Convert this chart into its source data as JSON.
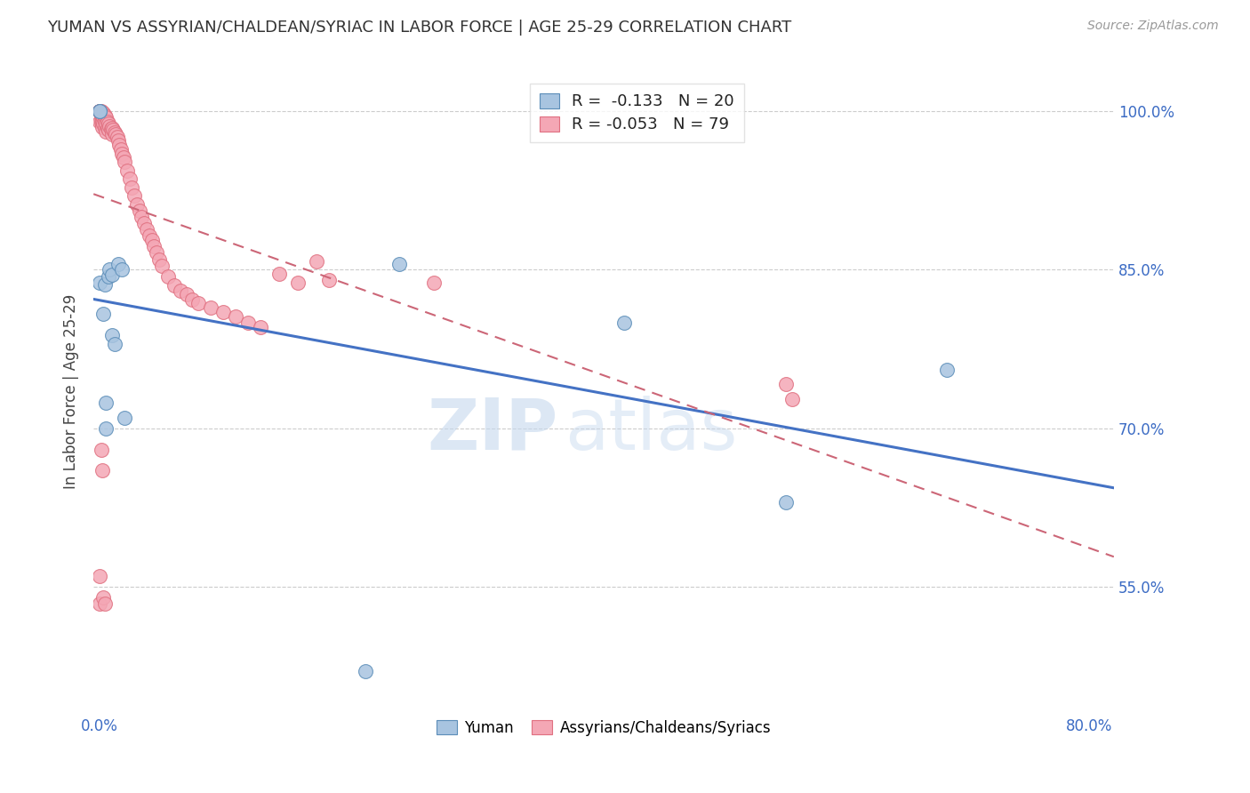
{
  "title": "YUMAN VS ASSYRIAN/CHALDEAN/SYRIAC IN LABOR FORCE | AGE 25-29 CORRELATION CHART",
  "source": "Source: ZipAtlas.com",
  "ylabel": "In Labor Force | Age 25-29",
  "ytick_labels": [
    "55.0%",
    "70.0%",
    "85.0%",
    "100.0%"
  ],
  "ytick_values": [
    0.55,
    0.7,
    0.85,
    1.0
  ],
  "xlim": [
    -0.005,
    0.82
  ],
  "ylim": [
    0.43,
    1.04
  ],
  "legend_blue_R": "-0.133",
  "legend_blue_N": "20",
  "legend_pink_R": "-0.053",
  "legend_pink_N": "79",
  "blue_color": "#A8C4E0",
  "pink_color": "#F4A7B5",
  "blue_edge_color": "#5B8DB8",
  "pink_edge_color": "#E07080",
  "blue_line_color": "#4472C4",
  "pink_line_color": "#D9708080",
  "watermark_zip_color": "#C5D8EE",
  "watermark_atlas_color": "#C5D8EE",
  "legend_label_blue": "Yuman",
  "legend_label_pink": "Assyrians/Chaldeans/Syriacs",
  "blue_x": [
    0.0,
    0.0,
    0.0,
    0.003,
    0.004,
    0.005,
    0.005,
    0.007,
    0.008,
    0.01,
    0.01,
    0.012,
    0.015,
    0.018,
    0.02,
    0.215,
    0.242,
    0.424,
    0.555,
    0.685
  ],
  "blue_y": [
    1.0,
    1.0,
    0.838,
    0.808,
    0.836,
    0.724,
    0.7,
    0.844,
    0.85,
    0.788,
    0.845,
    0.78,
    0.855,
    0.85,
    0.71,
    0.47,
    0.855,
    0.8,
    0.63,
    0.755
  ],
  "pink_x": [
    0.0,
    0.0,
    0.0,
    0.0,
    0.0,
    0.001,
    0.001,
    0.001,
    0.001,
    0.002,
    0.002,
    0.002,
    0.002,
    0.003,
    0.003,
    0.003,
    0.004,
    0.004,
    0.004,
    0.005,
    0.005,
    0.005,
    0.006,
    0.006,
    0.007,
    0.007,
    0.008,
    0.009,
    0.01,
    0.01,
    0.011,
    0.012,
    0.013,
    0.014,
    0.015,
    0.016,
    0.017,
    0.018,
    0.019,
    0.02,
    0.022,
    0.024,
    0.026,
    0.028,
    0.03,
    0.032,
    0.034,
    0.036,
    0.038,
    0.04,
    0.042,
    0.044,
    0.046,
    0.048,
    0.05,
    0.055,
    0.06,
    0.065,
    0.07,
    0.075,
    0.08,
    0.09,
    0.1,
    0.11,
    0.12,
    0.13,
    0.145,
    0.16,
    0.175,
    0.185,
    0.27,
    0.555,
    0.56,
    0.0,
    0.0,
    0.001,
    0.002,
    0.003,
    0.004
  ],
  "pink_y": [
    1.0,
    1.0,
    1.0,
    1.0,
    0.99,
    1.0,
    0.998,
    0.995,
    0.99,
    0.998,
    0.994,
    0.99,
    0.985,
    0.998,
    0.993,
    0.988,
    0.996,
    0.99,
    0.984,
    0.994,
    0.988,
    0.981,
    0.99,
    0.984,
    0.988,
    0.982,
    0.986,
    0.983,
    0.984,
    0.978,
    0.982,
    0.98,
    0.978,
    0.976,
    0.972,
    0.968,
    0.964,
    0.96,
    0.956,
    0.952,
    0.944,
    0.936,
    0.928,
    0.92,
    0.912,
    0.906,
    0.9,
    0.894,
    0.888,
    0.882,
    0.878,
    0.872,
    0.866,
    0.86,
    0.854,
    0.844,
    0.835,
    0.83,
    0.827,
    0.822,
    0.818,
    0.814,
    0.81,
    0.806,
    0.8,
    0.796,
    0.846,
    0.838,
    0.858,
    0.84,
    0.838,
    0.742,
    0.728,
    0.56,
    0.534,
    0.68,
    0.66,
    0.54,
    0.534
  ]
}
